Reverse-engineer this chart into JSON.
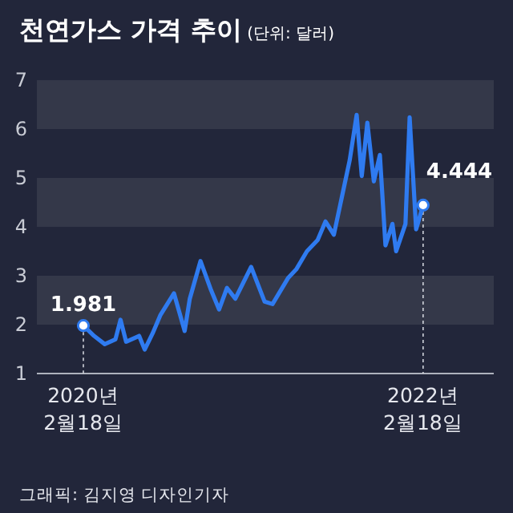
{
  "chart_data": {
    "type": "line",
    "title": "천연가스 가격 추이",
    "subtitle": "(단위: 달러)",
    "annotations": [
      "그래픽: 김지영 디자인기자"
    ],
    "x": [
      "2020-02-18",
      "2020-03-12",
      "2020-04-04",
      "2020-04-27",
      "2020-05-08",
      "2020-05-20",
      "2020-06-17",
      "2020-06-29",
      "2020-07-16",
      "2020-08-02",
      "2020-08-31",
      "2020-09-23",
      "2020-10-04",
      "2020-10-27",
      "2020-11-19",
      "2020-12-06",
      "2020-12-23",
      "2021-01-10",
      "2021-02-13",
      "2021-03-14",
      "2021-03-31",
      "2021-05-04",
      "2021-05-21",
      "2021-06-13",
      "2021-07-06",
      "2021-07-23",
      "2021-08-10",
      "2021-08-27",
      "2021-09-13",
      "2021-09-28",
      "2021-10-09",
      "2021-10-21",
      "2021-11-04",
      "2021-11-17",
      "2021-11-29",
      "2021-12-14",
      "2021-12-22",
      "2022-01-11",
      "2022-01-20",
      "2022-02-03",
      "2022-02-18"
    ],
    "series": [
      {
        "color": "#2f7bf0",
        "values": [
          1.981,
          1.77,
          1.6,
          1.7,
          2.1,
          1.65,
          1.77,
          1.49,
          1.82,
          2.2,
          2.64,
          1.87,
          2.53,
          3.3,
          2.7,
          2.31,
          2.75,
          2.53,
          3.18,
          2.47,
          2.42,
          2.96,
          3.13,
          3.5,
          3.73,
          4.11,
          3.84,
          4.6,
          5.36,
          6.29,
          5.04,
          6.13,
          4.93,
          5.47,
          3.62,
          4.06,
          3.5,
          4.06,
          6.24,
          3.95,
          4.444
        ],
        "value_labels": [
          "1.981",
          null,
          null,
          null,
          null,
          null,
          null,
          null,
          null,
          null,
          null,
          null,
          null,
          null,
          null,
          null,
          null,
          null,
          null,
          null,
          null,
          null,
          null,
          null,
          null,
          null,
          null,
          null,
          null,
          null,
          null,
          null,
          null,
          null,
          null,
          null,
          null,
          null,
          null,
          null,
          "4.444"
        ]
      }
    ],
    "xlim": [
      "2019-11-10",
      "2022-07-20"
    ],
    "xticks": [
      {
        "value": "2020-02-18",
        "label": "2020년 2월18일"
      },
      {
        "value": "2022-02-18",
        "label": "2022년 2월18일"
      }
    ],
    "ylim": [
      1,
      7
    ],
    "yticks": [
      1,
      2,
      3,
      4,
      5,
      6,
      7
    ],
    "bands": [
      {
        "axis": "y",
        "from": 2,
        "to": 3,
        "color": "#343849"
      },
      {
        "axis": "y",
        "from": 4,
        "to": 5,
        "color": "#343849"
      },
      {
        "axis": "y",
        "from": 6,
        "to": 7,
        "color": "#343849"
      }
    ],
    "ref_lines": [
      {
        "axis": "x",
        "value": "2020-02-18",
        "line_style": "dashed",
        "color": "#cfd2da"
      },
      {
        "axis": "x",
        "value": "2022-02-18",
        "line_style": "dashed",
        "color": "#cfd2da"
      }
    ]
  }
}
